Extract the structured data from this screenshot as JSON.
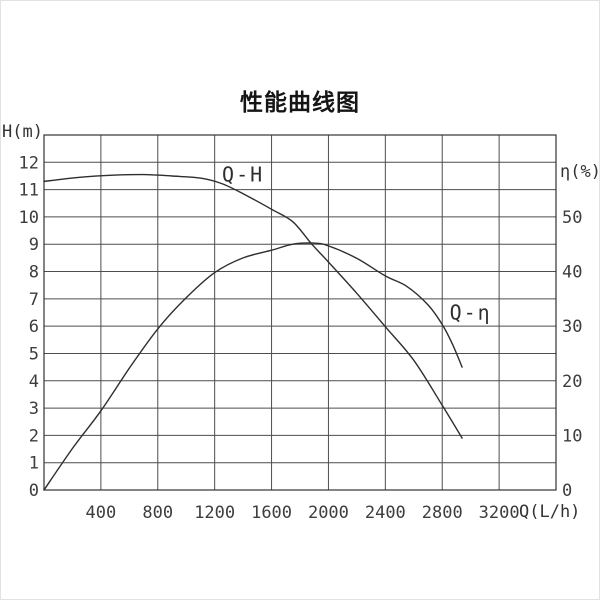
{
  "page": {
    "background": "#ffffff",
    "border_color": "#e2e2e2"
  },
  "chart_data": {
    "type": "line",
    "title": "性能曲线图",
    "grid": true,
    "legend_position": "none",
    "colors": {
      "curve": "#2e2e2e",
      "grid": "#4d4d4d",
      "frame": "#333333",
      "tick_text": "#3d3d3d"
    },
    "x_axis": {
      "label": "Q(L/h)",
      "min": 0,
      "max": 3600,
      "gridline_step": 400,
      "tick_values": [
        400,
        800,
        1200,
        1600,
        2000,
        2400,
        2800,
        3200
      ]
    },
    "y_axis_left": {
      "label": "H(m)",
      "min": 0,
      "max": 13,
      "gridline_step": 1,
      "gridline_max": 12,
      "tick_values": [
        0,
        1,
        2,
        3,
        4,
        5,
        6,
        7,
        8,
        9,
        10,
        11,
        12
      ]
    },
    "y_axis_right": {
      "label": "η(%)",
      "min": 0,
      "max": 65,
      "tick_step": 10,
      "tick_values": [
        0,
        10,
        20,
        30,
        40,
        50
      ]
    },
    "series": [
      {
        "key": "q-h",
        "name": "Q-H",
        "axis": "left",
        "label": {
          "text": "Q-H",
          "x": 1400,
          "y": 11.55
        },
        "points": [
          [
            0,
            11.3
          ],
          [
            250,
            11.45
          ],
          [
            500,
            11.53
          ],
          [
            700,
            11.55
          ],
          [
            900,
            11.5
          ],
          [
            1100,
            11.42
          ],
          [
            1250,
            11.22
          ],
          [
            1400,
            10.85
          ],
          [
            1600,
            10.28
          ],
          [
            1750,
            9.82
          ],
          [
            1880,
            9.02
          ],
          [
            2000,
            8.35
          ],
          [
            2200,
            7.2
          ],
          [
            2400,
            5.98
          ],
          [
            2600,
            4.75
          ],
          [
            2800,
            3.1
          ],
          [
            2940,
            1.9
          ]
        ]
      },
      {
        "key": "q-eta",
        "name": "Q-η",
        "axis": "right",
        "label": {
          "text": "Q-η",
          "x": 3000,
          "y": 32.5
        },
        "points": [
          [
            0,
            0
          ],
          [
            200,
            7.6
          ],
          [
            400,
            14.5
          ],
          [
            600,
            22.3
          ],
          [
            800,
            29.5
          ],
          [
            1000,
            35.2
          ],
          [
            1200,
            39.8
          ],
          [
            1400,
            42.5
          ],
          [
            1600,
            43.9
          ],
          [
            1750,
            45.0
          ],
          [
            1900,
            45.2
          ],
          [
            2000,
            44.7
          ],
          [
            2200,
            42.4
          ],
          [
            2400,
            39.2
          ],
          [
            2550,
            37.3
          ],
          [
            2700,
            33.9
          ],
          [
            2800,
            30.3
          ],
          [
            2870,
            26.8
          ],
          [
            2940,
            22.5
          ]
        ]
      }
    ]
  }
}
